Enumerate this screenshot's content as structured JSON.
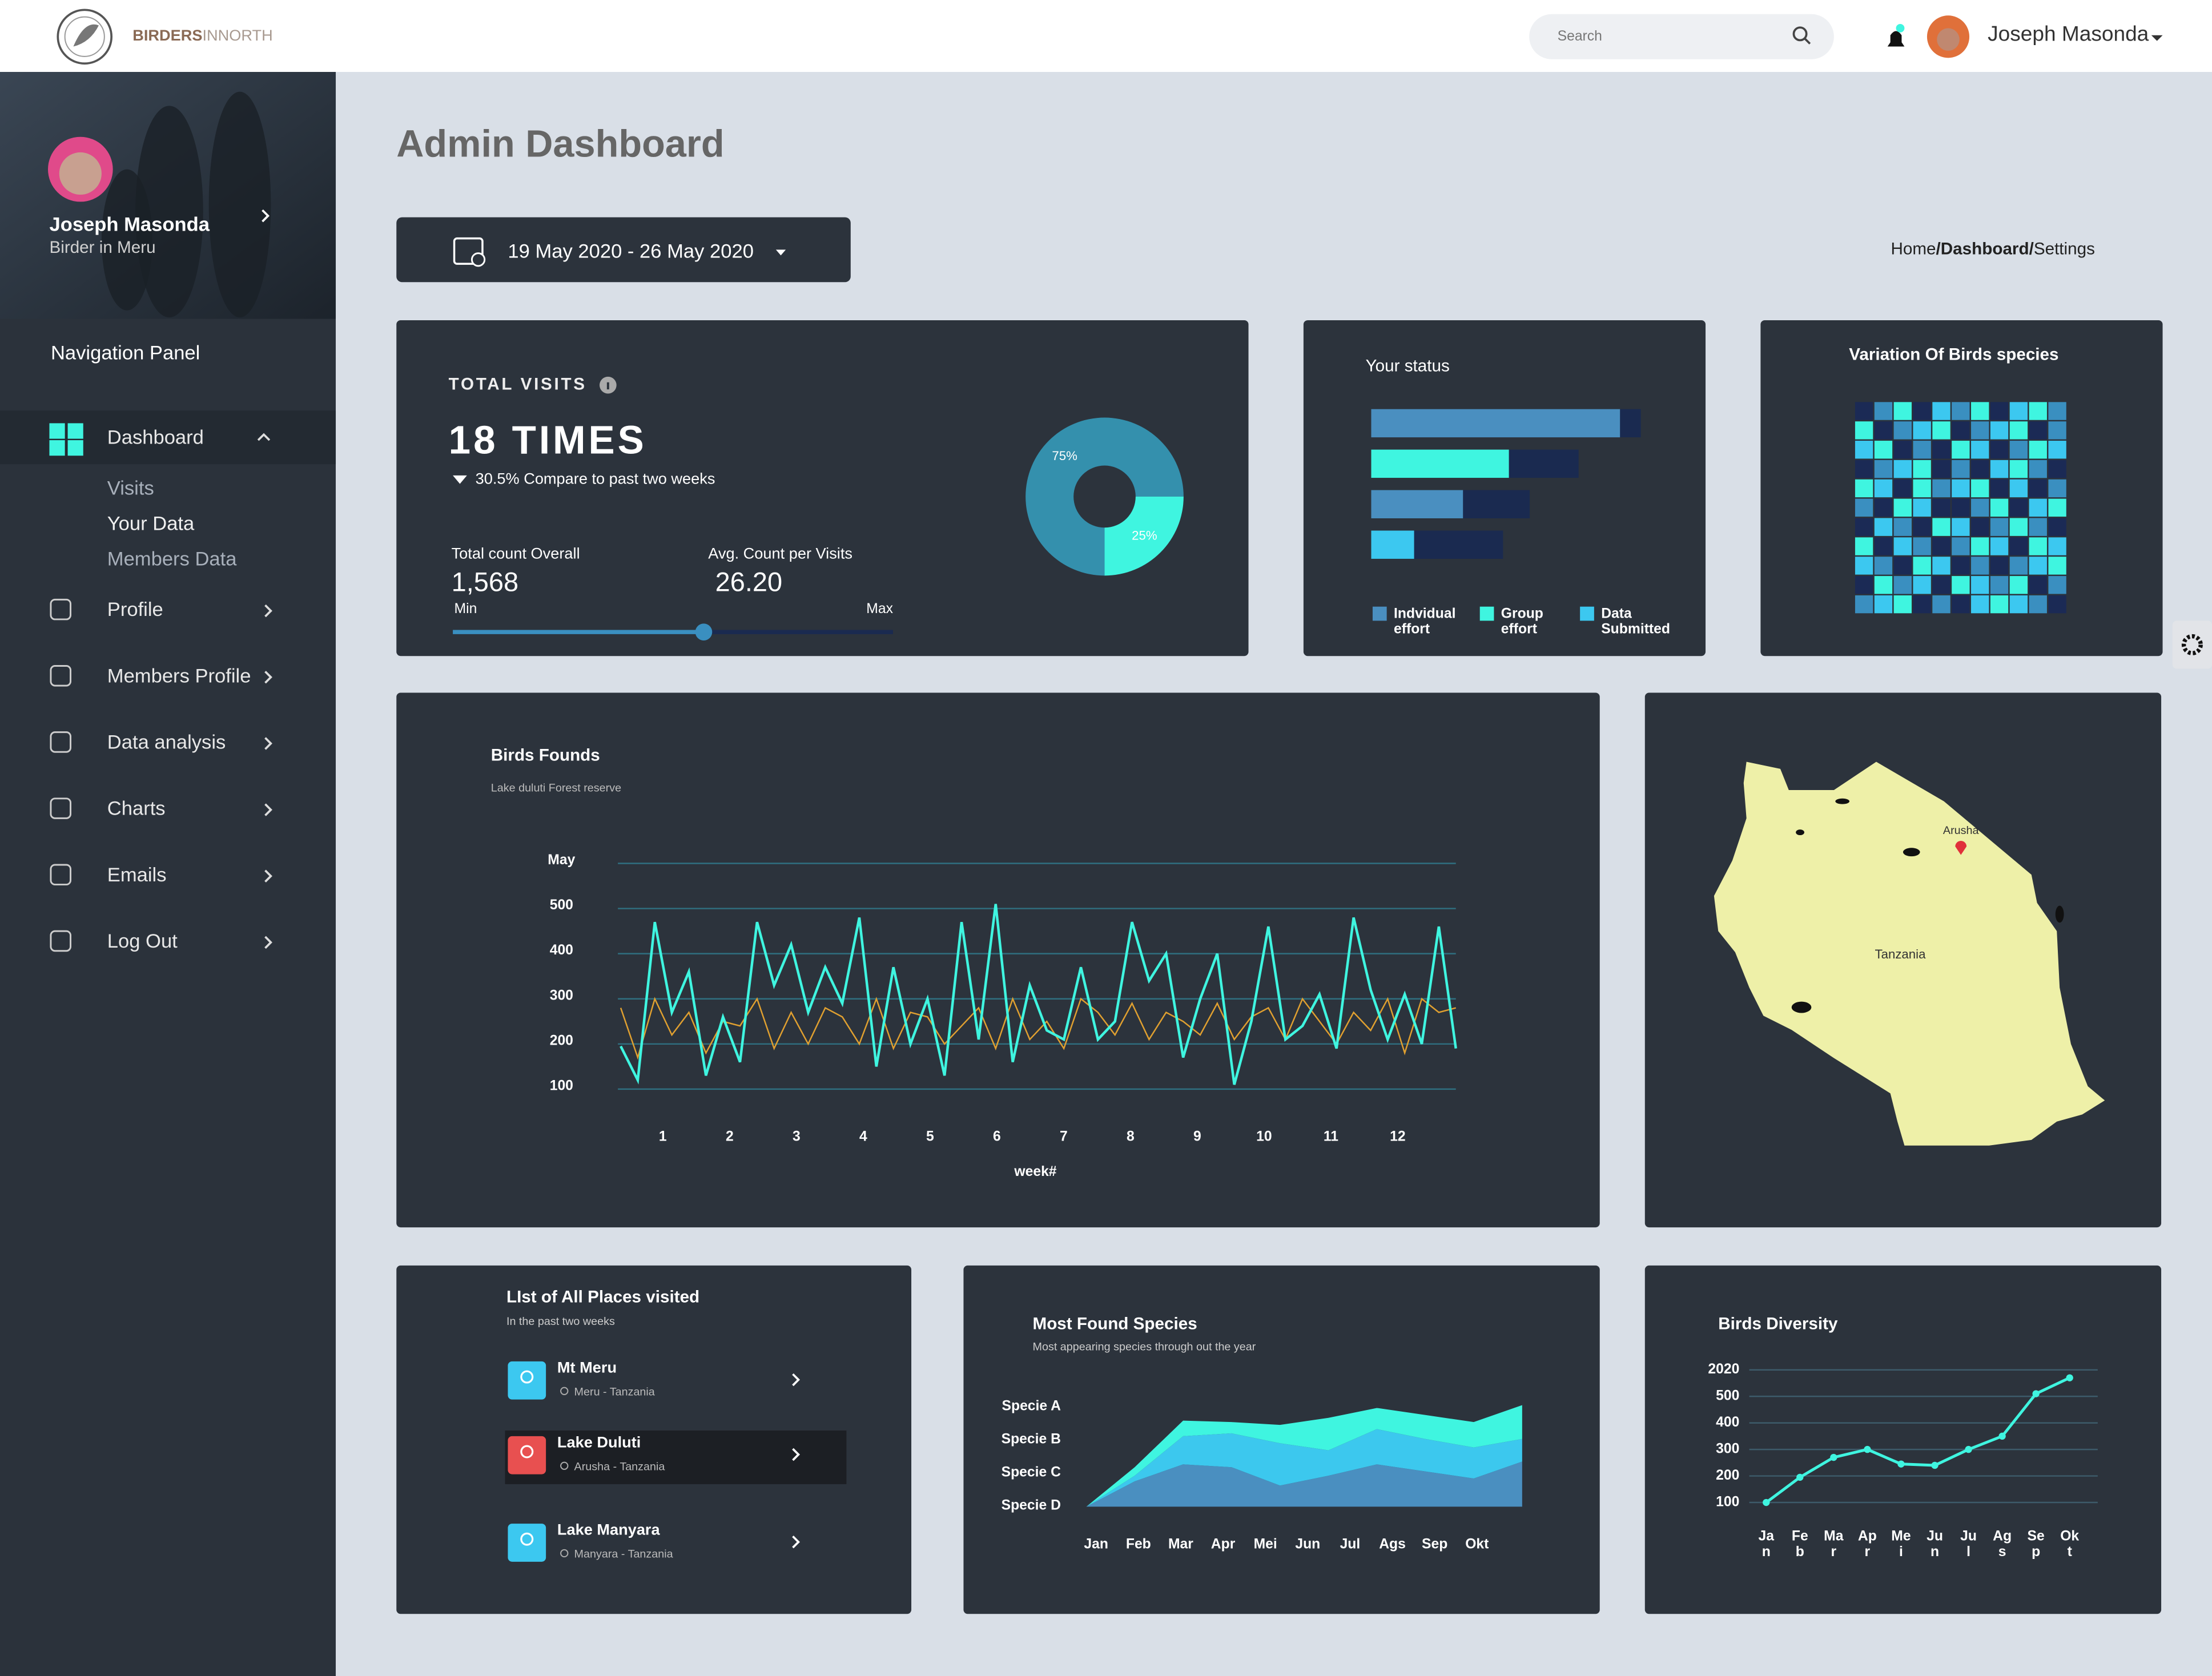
{
  "header": {
    "brand_bold": "BIRDERS",
    "brand_light": "INNORTH",
    "search_placeholder": "Search",
    "user_name": "Joseph Masonda"
  },
  "sidebar": {
    "profile_name": "Joseph Masonda",
    "profile_role": "Birder in Meru",
    "panel_title": "Navigation Panel",
    "items": [
      {
        "label": "Dashboard",
        "children": [
          "Visits",
          "Your Data",
          "Members Data"
        ]
      },
      {
        "label": "Profile"
      },
      {
        "label": "Members Profile"
      },
      {
        "label": "Data analysis"
      },
      {
        "label": "Charts"
      },
      {
        "label": "Emails"
      },
      {
        "label": "Log Out"
      }
    ]
  },
  "page": {
    "title": "Admin Dashboard",
    "date_range": "19 May 2020 - 26 May 2020",
    "breadcrumb": [
      "Home",
      "Dashboard",
      "Settings"
    ],
    "breadcrumb_separator": "/"
  },
  "total_visits": {
    "label": "TOTAL VISITS",
    "value": "18 TIMES",
    "change": "30.5% Compare to past two weeks",
    "stats": [
      {
        "label": "Total count Overall",
        "value": "1,568"
      },
      {
        "label": "Avg. Count per Visits",
        "value": "26.20"
      }
    ],
    "slider": {
      "min_label": "Min",
      "max_label": "Max",
      "position": 0.57
    },
    "donut": {
      "values": [
        75,
        25
      ],
      "value_labels": [
        "75%",
        "25%"
      ],
      "colors": [
        "#3490ad",
        "#3ff5e0"
      ]
    }
  },
  "status": {
    "title": "Your status",
    "max": 200,
    "bars": [
      {
        "values": [
          168,
          14
        ],
        "colors": [
          "#4a8fc0",
          "#1a2a50"
        ]
      },
      {
        "values": [
          93,
          47
        ],
        "colors": [
          "#3ff5e0",
          "#1a2a50"
        ]
      },
      {
        "values": [
          62,
          45
        ],
        "colors": [
          "#4a8fc0",
          "#1a2a50"
        ]
      },
      {
        "values": [
          29,
          60
        ],
        "colors": [
          "#3cc8f0",
          "#1a2a50"
        ]
      }
    ],
    "legend": [
      {
        "label": "Indvidual effort",
        "color": "#4a8fc0"
      },
      {
        "label": "Group effort",
        "color": "#3ff5e0"
      },
      {
        "label": "Data Submitted",
        "color": "#3cc8f0"
      }
    ]
  },
  "variation": {
    "title": "Variation Of Birds species",
    "palette": [
      "#1b2a55",
      "#3ff5e0",
      "#3cc8f0",
      "#3a8fc0"
    ],
    "matrix": [
      [
        0,
        3,
        1,
        0,
        2,
        3,
        1,
        0,
        2,
        1,
        3
      ],
      [
        1,
        0,
        3,
        2,
        1,
        0,
        3,
        2,
        1,
        0,
        3
      ],
      [
        2,
        1,
        0,
        3,
        0,
        1,
        2,
        0,
        3,
        1,
        2
      ],
      [
        0,
        3,
        2,
        1,
        0,
        3,
        0,
        2,
        1,
        3,
        0
      ],
      [
        1,
        2,
        0,
        1,
        3,
        2,
        1,
        0,
        2,
        0,
        3
      ],
      [
        3,
        0,
        1,
        2,
        0,
        0,
        3,
        1,
        0,
        2,
        1
      ],
      [
        0,
        2,
        3,
        0,
        1,
        2,
        0,
        3,
        1,
        3,
        0
      ],
      [
        1,
        0,
        2,
        3,
        0,
        3,
        1,
        2,
        0,
        1,
        2
      ],
      [
        2,
        3,
        0,
        1,
        2,
        0,
        3,
        0,
        3,
        2,
        1
      ],
      [
        0,
        1,
        3,
        2,
        0,
        1,
        2,
        3,
        1,
        0,
        3
      ],
      [
        3,
        2,
        1,
        0,
        3,
        0,
        2,
        1,
        2,
        3,
        0
      ]
    ]
  },
  "birds_founds": {
    "title": "Birds Founds",
    "subtitle": "Lake duluti Forest reserve",
    "x_label": "week#",
    "ylim": [
      100,
      600
    ],
    "yticks": [
      {
        "value": 600,
        "label": "May"
      },
      500,
      400,
      300,
      200,
      100
    ],
    "xlim": [
      0.37,
      12.87
    ],
    "xticks": [
      1,
      2,
      3,
      4,
      5,
      6,
      7,
      8,
      9,
      10,
      11,
      12
    ],
    "series": [
      {
        "color": "#3ff5e0",
        "values": [
          195,
          120,
          470,
          270,
          360,
          130,
          260,
          160,
          470,
          330,
          420,
          270,
          370,
          290,
          480,
          150,
          370,
          200,
          300,
          130,
          470,
          210,
          510,
          160,
          330,
          230,
          210,
          370,
          210,
          250,
          470,
          340,
          400,
          170,
          300,
          400,
          110,
          250,
          460,
          210,
          240,
          310,
          190,
          480,
          320,
          210,
          310,
          200,
          460,
          190
        ]
      },
      {
        "color": "#e0a030",
        "values": [
          280,
          170,
          300,
          220,
          270,
          180,
          250,
          240,
          300,
          190,
          270,
          200,
          280,
          260,
          200,
          300,
          190,
          270,
          260,
          200,
          240,
          280,
          190,
          300,
          210,
          250,
          190,
          300,
          270,
          220,
          290,
          210,
          270,
          250,
          220,
          290,
          210,
          260,
          280,
          210,
          300,
          250,
          200,
          270,
          230,
          300,
          180,
          300,
          270,
          280
        ]
      }
    ]
  },
  "map": {
    "labels": [
      "Arusha",
      "Tanzania"
    ]
  },
  "places": {
    "title": "LIst  of All Places visited",
    "subtitle": "In the  past two weeks",
    "items": [
      {
        "name": "Mt Meru",
        "location": "Meru - Tanzania"
      },
      {
        "name": "Lake Duluti",
        "location": "Arusha - Tanzania"
      },
      {
        "name": "Lake Manyara",
        "location": "Manyara - Tanzania"
      }
    ]
  },
  "species": {
    "title": "Most Found Species",
    "subtitle": "Most appearing species through out the year",
    "ylabels": [
      "Specie A",
      "Specie B",
      "Specie C",
      "Specie D"
    ],
    "categories": [
      "Jan",
      "Feb",
      "Mar",
      "Apr",
      "Mei",
      "Jun",
      "Jul",
      "Ags",
      "Sep",
      "Okt"
    ],
    "ylim": [
      0,
      72
    ],
    "series": [
      {
        "color": "#4a8fc0",
        "values": [
          0,
          18,
          30,
          28,
          15,
          22,
          30,
          25,
          20,
          32
        ]
      },
      {
        "color": "#3cc8ee",
        "values": [
          0,
          4,
          20,
          24,
          30,
          18,
          25,
          23,
          22,
          16
        ]
      },
      {
        "color": "#3ff5e0",
        "values": [
          0,
          6,
          11,
          8,
          13,
          23,
          15,
          17,
          18,
          24
        ]
      }
    ]
  },
  "diversity": {
    "title": "Birds Diversity",
    "ylim": [
      100,
      600
    ],
    "yticks": [
      {
        "value": 600,
        "label": "2020"
      },
      500,
      400,
      300,
      200,
      100
    ],
    "categories": [
      "Jan",
      "Feb",
      "Mar",
      "Apr",
      "Mei",
      "Jun",
      "Jul",
      "Ags",
      "Sep",
      "Okt"
    ],
    "color": "#3ff5e0",
    "values": [
      100,
      195,
      270,
      300,
      245,
      240,
      300,
      350,
      510,
      570
    ]
  }
}
